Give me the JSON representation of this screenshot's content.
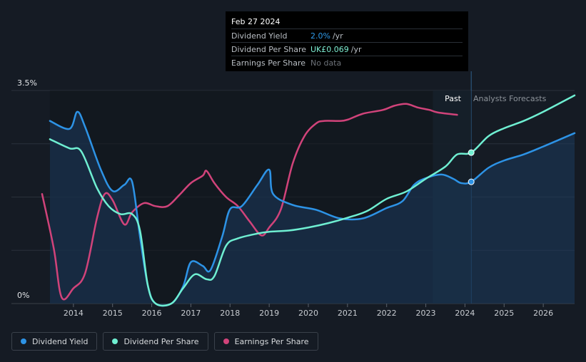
{
  "tooltip": {
    "date": "Feb 27 2024",
    "rows": [
      {
        "label": "Dividend Yield",
        "value": "2.0%",
        "unit": "/yr"
      },
      {
        "label": "Dividend Per Share",
        "value": "UK£0.069",
        "unit": "/yr"
      },
      {
        "label": "Earnings Per Share",
        "value": "No data",
        "unit": ""
      }
    ]
  },
  "region_labels": {
    "past": "Past",
    "forecast": "Analysts Forecasts"
  },
  "legend": [
    {
      "label": "Dividend Yield",
      "color": "#2d93e6"
    },
    {
      "label": "Dividend Per Share",
      "color": "#6fefd2"
    },
    {
      "label": "Earnings Per Share",
      "color": "#d1437a"
    }
  ],
  "chart_data": {
    "type": "line",
    "title": "",
    "ylim": [
      0,
      3.5
    ],
    "y_ticks": [
      {
        "value": 3.5,
        "label": "3.5%"
      },
      {
        "value": 0,
        "label": "0%"
      }
    ],
    "x_range": [
      2013.0,
      2026.8
    ],
    "x_ticks": [
      2014,
      2015,
      2016,
      2017,
      2018,
      2019,
      2020,
      2021,
      2022,
      2023,
      2024,
      2025,
      2026
    ],
    "past_start": 2023.18,
    "now": 2024.16,
    "colors": {
      "yield": "#2d93e6",
      "dps": "#6fefd2",
      "eps": "#d1437a"
    },
    "series": [
      {
        "name": "Dividend Yield",
        "key": "yield",
        "unit": "%",
        "points": [
          [
            2013.4,
            3.0
          ],
          [
            2013.9,
            2.87
          ],
          [
            2014.1,
            3.15
          ],
          [
            2014.3,
            2.9
          ],
          [
            2014.7,
            2.2
          ],
          [
            2015.0,
            1.85
          ],
          [
            2015.3,
            1.95
          ],
          [
            2015.5,
            2.0
          ],
          [
            2015.7,
            1.1
          ],
          [
            2015.9,
            0.3
          ],
          [
            2016.1,
            0.0
          ],
          [
            2016.5,
            0.0
          ],
          [
            2016.8,
            0.28
          ],
          [
            2017.0,
            0.68
          ],
          [
            2017.3,
            0.62
          ],
          [
            2017.5,
            0.55
          ],
          [
            2017.8,
            1.1
          ],
          [
            2018.0,
            1.55
          ],
          [
            2018.3,
            1.6
          ],
          [
            2018.7,
            1.95
          ],
          [
            2019.0,
            2.2
          ],
          [
            2019.1,
            1.8
          ],
          [
            2019.6,
            1.62
          ],
          [
            2020.2,
            1.54
          ],
          [
            2020.8,
            1.4
          ],
          [
            2021.4,
            1.4
          ],
          [
            2022.0,
            1.57
          ],
          [
            2022.4,
            1.68
          ],
          [
            2022.7,
            1.95
          ],
          [
            2023.0,
            2.06
          ],
          [
            2023.4,
            2.12
          ],
          [
            2023.7,
            2.05
          ],
          [
            2023.9,
            1.98
          ],
          [
            2024.16,
            2.0
          ],
          [
            2024.6,
            2.23
          ],
          [
            2025.0,
            2.35
          ],
          [
            2025.5,
            2.45
          ],
          [
            2026.0,
            2.58
          ],
          [
            2026.8,
            2.8
          ]
        ]
      },
      {
        "name": "Dividend Per Share",
        "key": "dps",
        "unit": "UK£",
        "points": [
          [
            2013.4,
            2.7
          ],
          [
            2013.9,
            2.55
          ],
          [
            2014.2,
            2.5
          ],
          [
            2014.6,
            1.9
          ],
          [
            2014.9,
            1.6
          ],
          [
            2015.2,
            1.47
          ],
          [
            2015.5,
            1.47
          ],
          [
            2015.7,
            1.2
          ],
          [
            2015.9,
            0.3
          ],
          [
            2016.1,
            0.0
          ],
          [
            2016.5,
            0.0
          ],
          [
            2016.8,
            0.25
          ],
          [
            2017.1,
            0.48
          ],
          [
            2017.4,
            0.4
          ],
          [
            2017.6,
            0.45
          ],
          [
            2017.9,
            0.95
          ],
          [
            2018.2,
            1.07
          ],
          [
            2018.7,
            1.15
          ],
          [
            2019.0,
            1.18
          ],
          [
            2019.5,
            1.2
          ],
          [
            2020.0,
            1.25
          ],
          [
            2020.5,
            1.32
          ],
          [
            2021.0,
            1.41
          ],
          [
            2021.5,
            1.52
          ],
          [
            2022.0,
            1.72
          ],
          [
            2022.5,
            1.84
          ],
          [
            2023.0,
            2.05
          ],
          [
            2023.5,
            2.25
          ],
          [
            2023.8,
            2.45
          ],
          [
            2024.16,
            2.48
          ],
          [
            2024.6,
            2.75
          ],
          [
            2025.0,
            2.88
          ],
          [
            2025.5,
            3.0
          ],
          [
            2026.0,
            3.15
          ],
          [
            2026.8,
            3.42
          ]
        ]
      },
      {
        "name": "Earnings Per Share",
        "key": "eps",
        "unit": "UK£",
        "points": [
          [
            2013.2,
            1.8
          ],
          [
            2013.5,
            0.9
          ],
          [
            2013.7,
            0.1
          ],
          [
            2014.0,
            0.25
          ],
          [
            2014.3,
            0.5
          ],
          [
            2014.6,
            1.4
          ],
          [
            2014.8,
            1.8
          ],
          [
            2015.0,
            1.7
          ],
          [
            2015.3,
            1.3
          ],
          [
            2015.5,
            1.5
          ],
          [
            2015.8,
            1.65
          ],
          [
            2016.1,
            1.6
          ],
          [
            2016.4,
            1.6
          ],
          [
            2016.7,
            1.78
          ],
          [
            2017.0,
            1.98
          ],
          [
            2017.3,
            2.1
          ],
          [
            2017.4,
            2.18
          ],
          [
            2017.6,
            1.98
          ],
          [
            2017.9,
            1.75
          ],
          [
            2018.2,
            1.6
          ],
          [
            2018.5,
            1.35
          ],
          [
            2018.8,
            1.12
          ],
          [
            2019.0,
            1.25
          ],
          [
            2019.3,
            1.55
          ],
          [
            2019.6,
            2.3
          ],
          [
            2019.9,
            2.75
          ],
          [
            2020.2,
            2.96
          ],
          [
            2020.4,
            3.0
          ],
          [
            2020.8,
            3.0
          ],
          [
            2021.0,
            3.02
          ],
          [
            2021.4,
            3.12
          ],
          [
            2021.9,
            3.18
          ],
          [
            2022.2,
            3.25
          ],
          [
            2022.5,
            3.28
          ],
          [
            2022.8,
            3.22
          ],
          [
            2023.1,
            3.18
          ],
          [
            2023.3,
            3.14
          ],
          [
            2023.8,
            3.1
          ]
        ]
      }
    ],
    "markers": [
      {
        "series": "yield",
        "x": 2024.16,
        "y": 2.0
      },
      {
        "series": "dps",
        "x": 2024.16,
        "y": 2.48
      }
    ]
  }
}
